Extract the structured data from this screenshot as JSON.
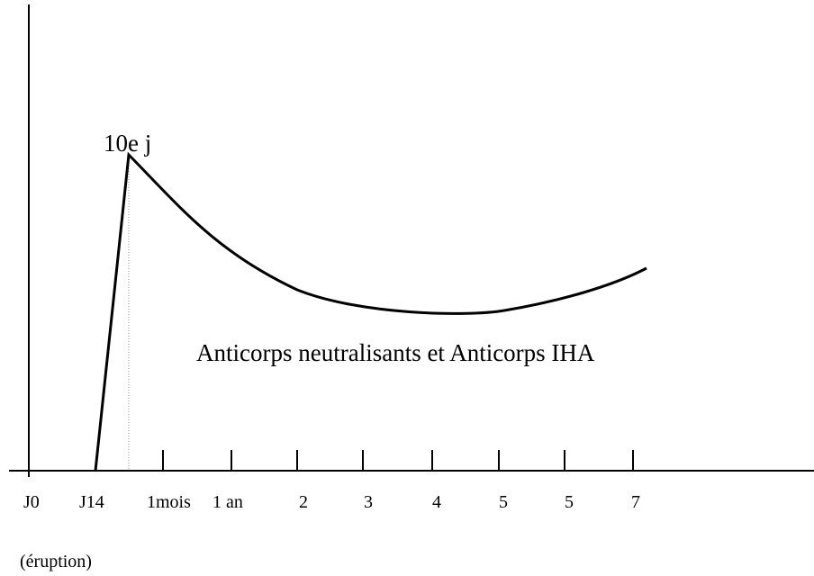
{
  "peak_label": "10e j",
  "curve_label": "Anticorps neutralisants et Anticorps IHA",
  "x_labels": [
    "J0",
    "J14",
    "1mois",
    "1 an",
    "2",
    "3",
    "4",
    "5",
    "5",
    "7"
  ],
  "note": "(éruption)"
}
